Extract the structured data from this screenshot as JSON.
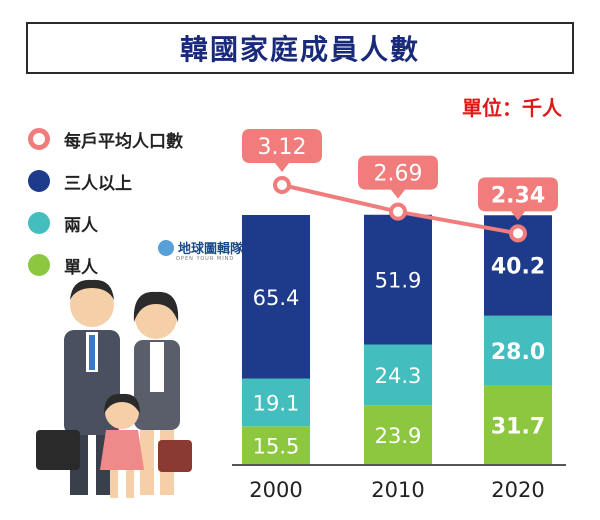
{
  "title": "韓國家庭成員人數",
  "unit_label": "單位：千人",
  "brand": {
    "name": "地球圖輯隊",
    "tagline": "OPEN YOUR MIND"
  },
  "legend": [
    {
      "label": "每戶平均人口數",
      "color": "#f07c7c",
      "style": "ring"
    },
    {
      "label": "三人以上",
      "color": "#1e3a8a",
      "style": "dot"
    },
    {
      "label": "兩人",
      "color": "#43bdbd",
      "style": "dot"
    },
    {
      "label": "單人",
      "color": "#8dc63f",
      "style": "dot"
    }
  ],
  "chart_data": {
    "type": "bar",
    "stacked": true,
    "categories": [
      "2000",
      "2010",
      "2020"
    ],
    "series": [
      {
        "name": "單人",
        "values": [
          "15.5",
          "23.9",
          "31.7"
        ],
        "color": "#8dc63f"
      },
      {
        "name": "兩人",
        "values": [
          "19.1",
          "24.3",
          "28.0"
        ],
        "color": "#43bdbd"
      },
      {
        "name": "三人以上",
        "values": [
          "65.4",
          "51.9",
          "40.2"
        ],
        "color": "#1e3a8a"
      }
    ],
    "line_series": {
      "name": "每戶平均人口數",
      "values": [
        "3.12",
        "2.69",
        "2.34"
      ],
      "color": "#f07c7c"
    },
    "ylim": [
      0,
      100
    ]
  }
}
